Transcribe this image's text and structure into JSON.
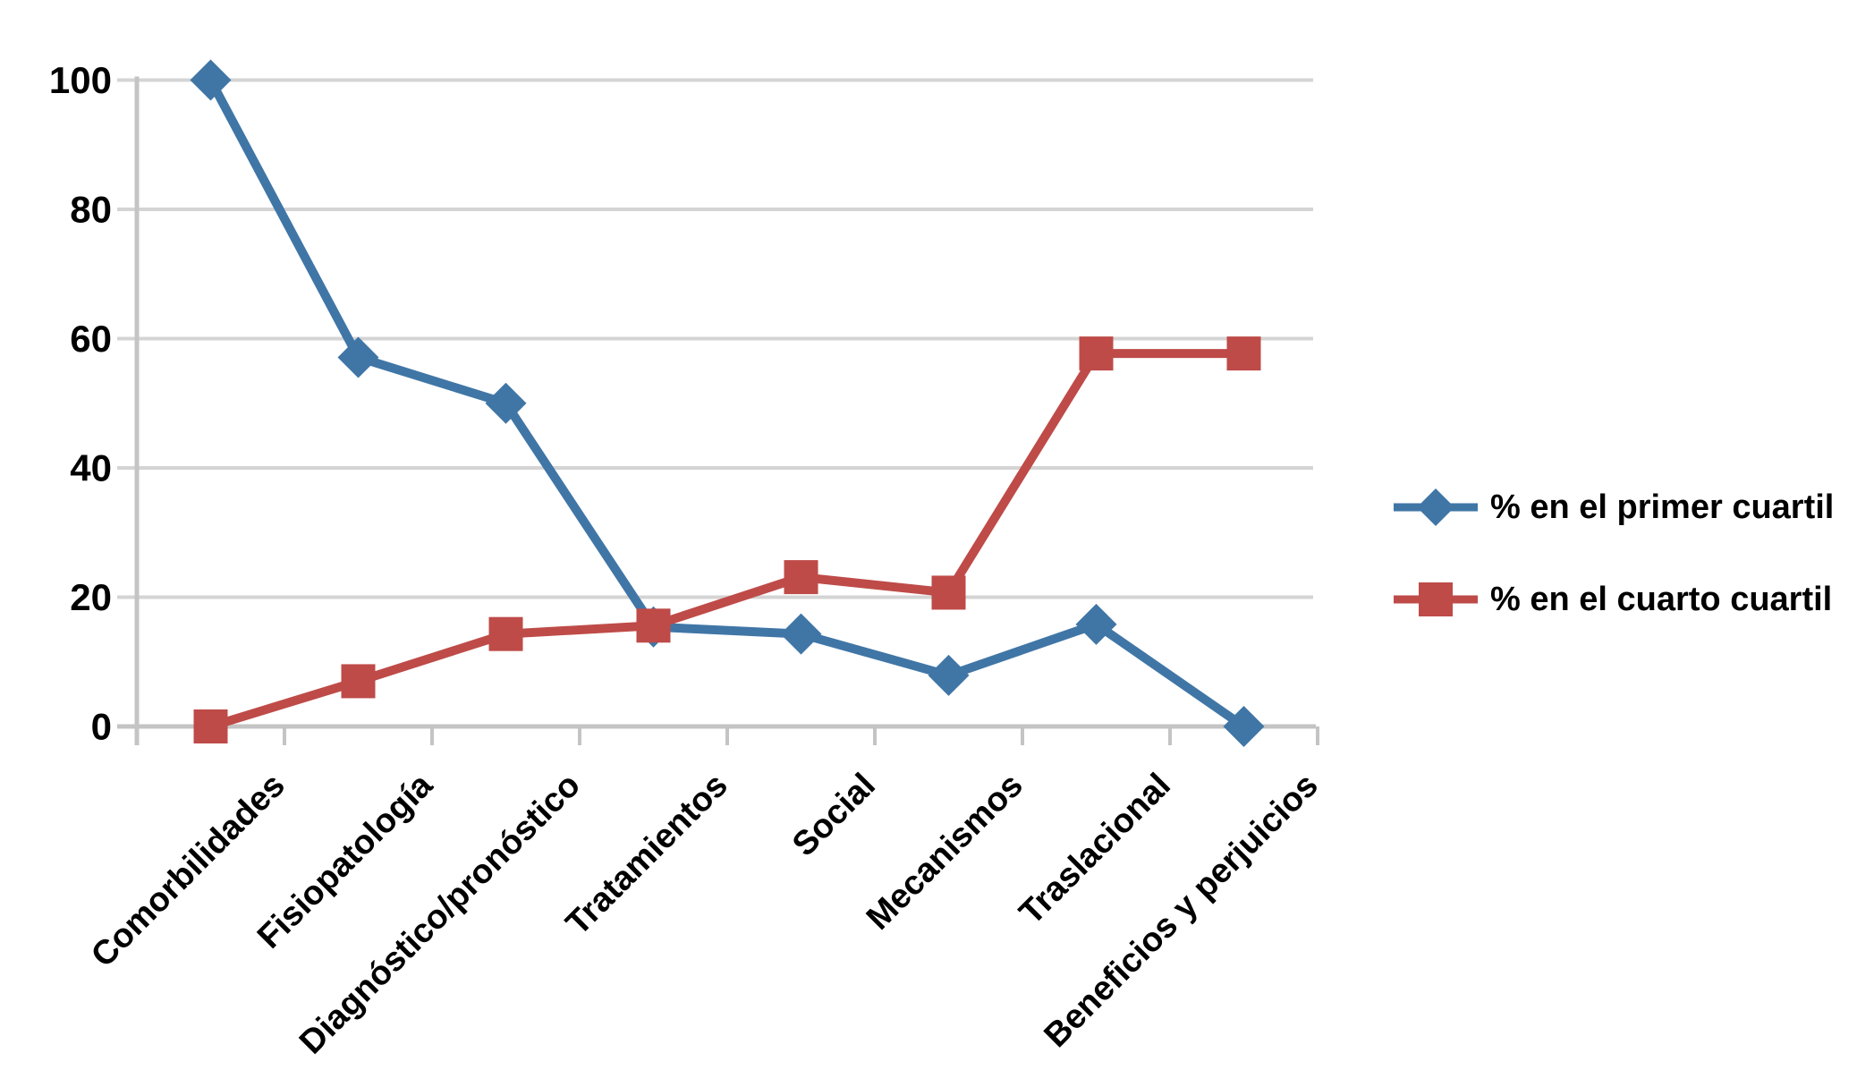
{
  "chart_data": {
    "type": "line",
    "title": "",
    "xlabel": "",
    "ylabel": "",
    "categories": [
      "Comorbilidades",
      "Fisiopatología",
      "Diagnóstico/pronóstico",
      "Tratamientos",
      "Social",
      "Mecanismos",
      "Traslacional",
      "Beneficios y perjuicios"
    ],
    "series": [
      {
        "name": "% en el primer cuartil",
        "color": "#4076A6",
        "marker": "diamond",
        "values": [
          100,
          57.1,
          50,
          15.4,
          14.3,
          7.9,
          15.8,
          0
        ]
      },
      {
        "name": "% en el cuarto cuartil",
        "color": "#BE4B48",
        "marker": "square",
        "values": [
          0,
          7,
          14.3,
          15.6,
          23.1,
          20.7,
          57.7,
          57.7
        ]
      }
    ],
    "ylim": [
      0,
      100
    ],
    "yticks": [
      0,
      20,
      40,
      60,
      80,
      100
    ],
    "grid": true,
    "legend_position": "right"
  },
  "colors": {
    "background": "#FFFFFF",
    "gridline": "#D4D4D4",
    "axis": "#C4C4C4",
    "text": "#000000"
  }
}
